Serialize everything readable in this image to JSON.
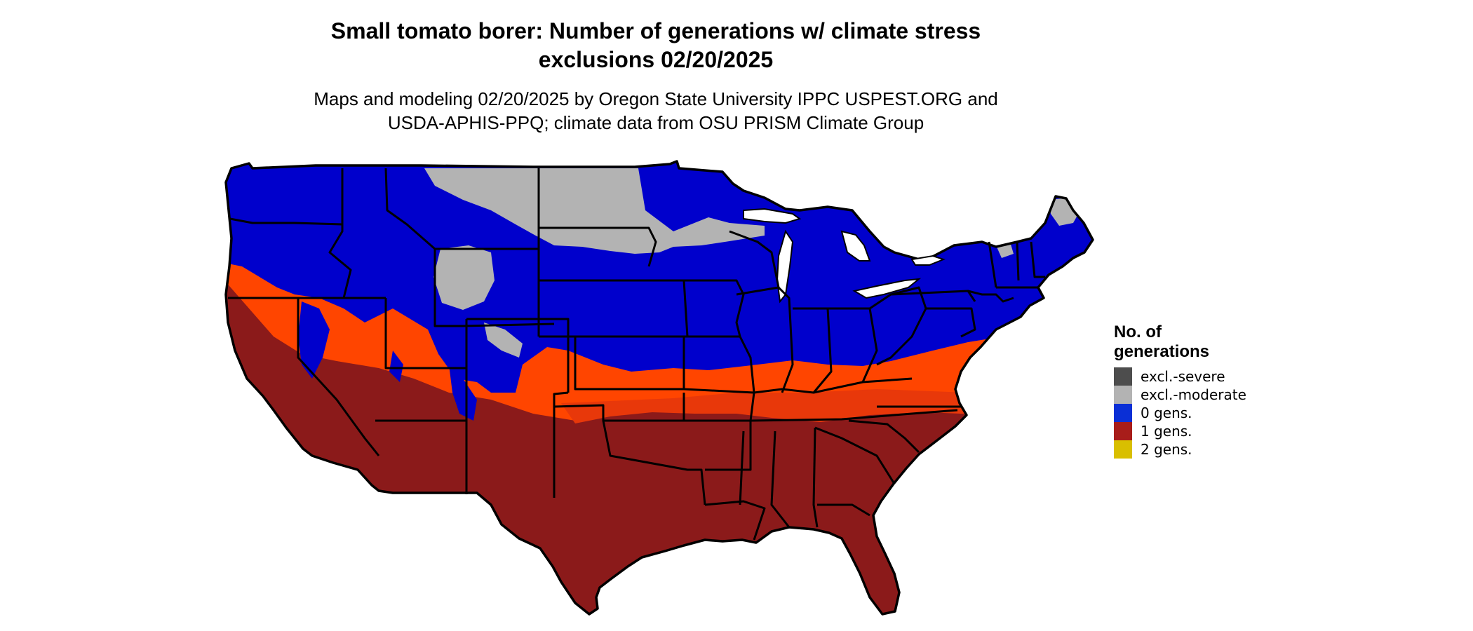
{
  "title_line1": "Small tomato borer: Number of generations w/ climate stress",
  "title_line2": "exclusions 02/20/2025",
  "subtitle_line1": "Maps and modeling 02/20/2025 by Oregon State University IPPC USPEST.ORG and",
  "subtitle_line2": "USDA-APHIS-PPQ; climate data from OSU PRISM Climate Group",
  "legend": {
    "title_line1": "No. of",
    "title_line2": "generations",
    "items": [
      {
        "label": "excl.-severe",
        "color": "#4d4d4d"
      },
      {
        "label": "excl.-moderate",
        "color": "#b3b3b3"
      },
      {
        "label": "0 gens.",
        "color": "#0a2fd6"
      },
      {
        "label": "1 gens.",
        "color": "#a81d1a"
      },
      {
        "label": "2 gens.",
        "color": "#d9bf00"
      }
    ]
  },
  "map_colors": {
    "blue": "#0000cc",
    "gray": "#b3b3b3",
    "orange": "#ff4500",
    "orange_dark": "#e8380a",
    "dark_red": "#8b1a1a",
    "border": "#000000"
  }
}
